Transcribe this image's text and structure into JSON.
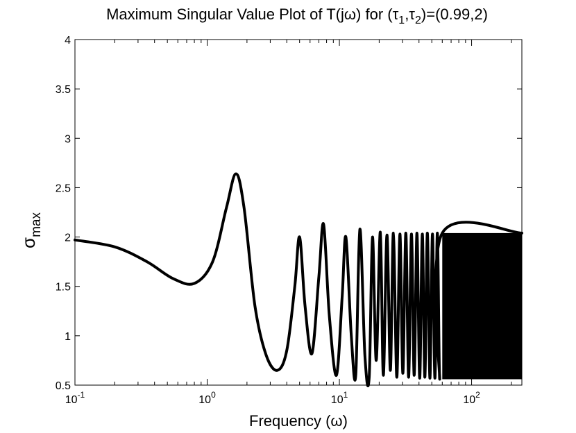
{
  "chart_data": {
    "type": "line",
    "title": {
      "main": "Maximum Singular Value Plot of T(jω) for (τ",
      "sub1": "1",
      "mid": ",τ",
      "sub2": "2",
      "end": ")=(0.99,2)"
    },
    "xlabel": "Frequency (ω)",
    "ylabel": {
      "base": "σ",
      "sub": "max"
    },
    "x_scale": "log",
    "xlim": [
      0.1,
      240
    ],
    "ylim": [
      0.5,
      4
    ],
    "grid": false,
    "x_ticks": [
      {
        "base": "10",
        "exp": "-1",
        "value": 0.1
      },
      {
        "base": "10",
        "exp": "0",
        "value": 1
      },
      {
        "base": "10",
        "exp": "1",
        "value": 10
      },
      {
        "base": "10",
        "exp": "2",
        "value": 100
      }
    ],
    "y_ticks": [
      {
        "label": "0.5",
        "value": 0.5
      },
      {
        "label": "1",
        "value": 1
      },
      {
        "label": "1.5",
        "value": 1.5
      },
      {
        "label": "2",
        "value": 2
      },
      {
        "label": "2.5",
        "value": 2.5
      },
      {
        "label": "3",
        "value": 3
      },
      {
        "label": "3.5",
        "value": 3.5
      },
      {
        "label": "4",
        "value": 4
      }
    ],
    "series": [
      {
        "color": "#000000",
        "x": [
          0.1,
          0.2,
          0.35,
          0.55,
          0.8,
          1.1,
          1.4,
          1.65,
          1.9,
          2.3,
          2.8,
          3.4,
          4.0,
          4.6,
          5.0,
          5.5,
          6.2,
          7.0,
          7.6,
          8.4,
          9.5,
          10.5,
          11.2,
          12.3,
          13.3,
          14.3,
          15.6,
          16.8,
          17.8,
          19.0,
          20.4,
          21.5,
          22.9,
          24.3,
          25.6,
          27.2,
          28.7,
          30.2,
          31.8,
          33.4,
          35.1,
          36.8,
          38.6,
          40.5,
          42.4,
          44.3,
          46.3,
          48.4,
          50.6,
          52.8,
          55.1,
          57.4,
          60.0,
          240
        ],
        "y": [
          1.97,
          1.9,
          1.75,
          1.58,
          1.53,
          1.75,
          2.3,
          2.64,
          2.3,
          1.3,
          0.8,
          0.65,
          0.85,
          1.5,
          2.0,
          1.3,
          0.82,
          1.6,
          2.13,
          1.2,
          0.6,
          1.4,
          2.0,
          1.0,
          0.6,
          2.08,
          0.8,
          0.58,
          2.0,
          0.75,
          2.05,
          0.6,
          2.02,
          0.65,
          2.04,
          0.58,
          2.03,
          0.62,
          2.04,
          0.58,
          2.03,
          0.6,
          2.04,
          0.57,
          2.03,
          0.58,
          2.04,
          0.57,
          2.03,
          0.57,
          2.04,
          0.56,
          2.04,
          2.04
        ]
      }
    ],
    "dense_band": {
      "from_x": 60,
      "to_x": 240,
      "y_min": 0.56,
      "y_max": 2.04
    }
  }
}
